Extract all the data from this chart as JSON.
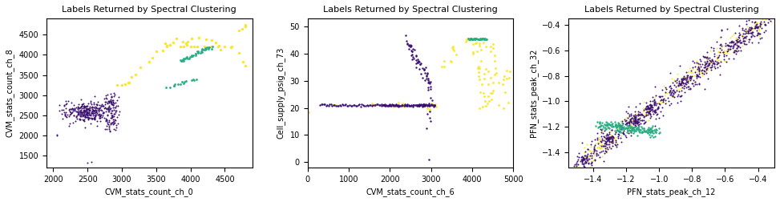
{
  "title": "Labels Returned by Spectral Clustering",
  "colors": {
    "cluster0": "#3b0f70",
    "cluster1": "#27ad81",
    "cluster2": "#fde725"
  },
  "plot1": {
    "xlabel": "CVM_stats_count_ch_0",
    "ylabel": "CVM_stats_count_ch_8",
    "xlim": [
      1900,
      4900
    ],
    "ylim": [
      1200,
      4900
    ]
  },
  "plot2": {
    "xlabel": "CVM_stats_count_ch_6",
    "ylabel": "Cell_supply_psig_ch_73",
    "xlim": [
      0,
      5000
    ],
    "ylim": [
      -2,
      53
    ]
  },
  "plot3": {
    "xlabel": "PFN_stats_peak_ch_12",
    "ylabel": "PFN_stats_peak_ch_32",
    "xlim": [
      -1.55,
      -0.3
    ],
    "ylim": [
      -1.52,
      -0.35
    ]
  }
}
